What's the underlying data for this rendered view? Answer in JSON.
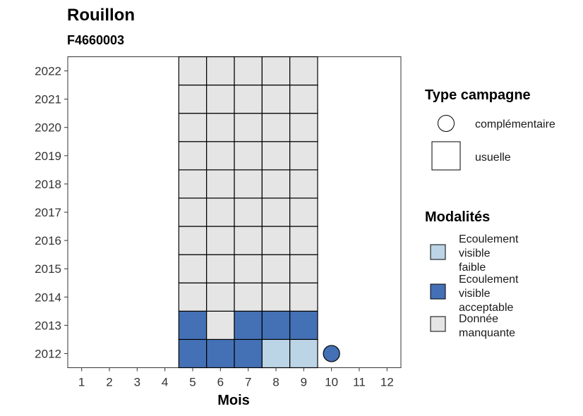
{
  "chart_data": {
    "type": "heatmap",
    "title": "Rouillon",
    "subtitle": "F4660003",
    "xlabel": "Mois",
    "ylabel": "",
    "x_ticks": [
      1,
      2,
      3,
      4,
      5,
      6,
      7,
      8,
      9,
      10,
      11,
      12
    ],
    "y_ticks": [
      2012,
      2013,
      2014,
      2015,
      2016,
      2017,
      2018,
      2019,
      2020,
      2021,
      2022
    ],
    "xlim": [
      0.5,
      12.5
    ],
    "ylim": [
      2011.5,
      2022.5
    ],
    "grid": false,
    "legend_position": "right",
    "colors": {
      "Ecoulement visible faible": "#bcd5e6",
      "Ecoulement visible acceptable": "#4471b5",
      "Donnée manquante": "#e5e5e5"
    },
    "shape_legend": {
      "title": "Type campagne",
      "items": [
        {
          "label": "complémentaire",
          "shape": "circle"
        },
        {
          "label": "usuelle",
          "shape": "square"
        }
      ]
    },
    "fill_legend": {
      "title": "Modalités",
      "items": [
        {
          "label": [
            "Ecoulement",
            "visible",
            "faible"
          ],
          "key": "Ecoulement visible faible"
        },
        {
          "label": [
            "Ecoulement",
            "visible",
            "acceptable"
          ],
          "key": "Ecoulement visible acceptable"
        },
        {
          "label": [
            "Donnée",
            "manquante"
          ],
          "key": "Donnée manquante"
        }
      ]
    },
    "points": [
      {
        "month": 5,
        "year": 2012,
        "campaign": "usuelle",
        "modality": "Ecoulement visible acceptable"
      },
      {
        "month": 6,
        "year": 2012,
        "campaign": "usuelle",
        "modality": "Ecoulement visible acceptable"
      },
      {
        "month": 7,
        "year": 2012,
        "campaign": "usuelle",
        "modality": "Ecoulement visible acceptable"
      },
      {
        "month": 8,
        "year": 2012,
        "campaign": "usuelle",
        "modality": "Ecoulement visible faible"
      },
      {
        "month": 9,
        "year": 2012,
        "campaign": "usuelle",
        "modality": "Ecoulement visible faible"
      },
      {
        "month": 10,
        "year": 2012,
        "campaign": "complémentaire",
        "modality": "Ecoulement visible acceptable"
      },
      {
        "month": 5,
        "year": 2013,
        "campaign": "usuelle",
        "modality": "Ecoulement visible acceptable"
      },
      {
        "month": 6,
        "year": 2013,
        "campaign": "usuelle",
        "modality": "Donnée manquante"
      },
      {
        "month": 7,
        "year": 2013,
        "campaign": "usuelle",
        "modality": "Ecoulement visible acceptable"
      },
      {
        "month": 8,
        "year": 2013,
        "campaign": "usuelle",
        "modality": "Ecoulement visible acceptable"
      },
      {
        "month": 9,
        "year": 2013,
        "campaign": "usuelle",
        "modality": "Ecoulement visible acceptable"
      }
    ],
    "missing_block": {
      "months": [
        5,
        6,
        7,
        8,
        9
      ],
      "years": [
        2014,
        2015,
        2016,
        2017,
        2018,
        2019,
        2020,
        2021,
        2022
      ],
      "modality": "Donnée manquante",
      "campaign": "usuelle"
    }
  }
}
